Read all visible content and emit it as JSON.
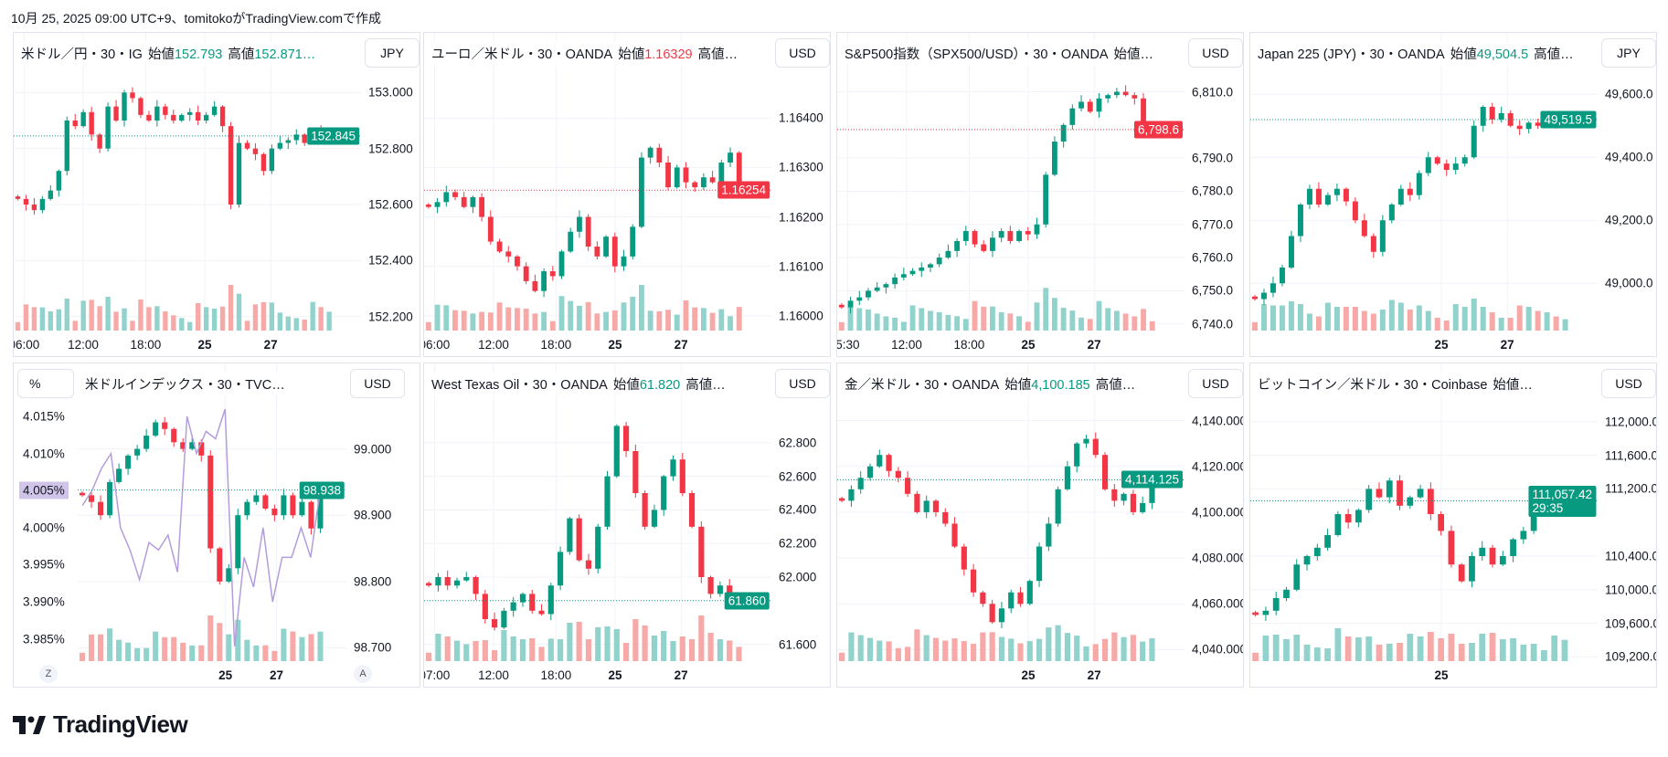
{
  "caption": "10月 25, 2025 09:00 UTC+9、tomitokoがTradingView.comで作成",
  "brand": "TradingView",
  "colors": {
    "up": "#089981",
    "down": "#f23645",
    "vol_up": "#92d2cc",
    "vol_down": "#f7a9a7",
    "overlay": "#b39ddb"
  },
  "chart_data": [
    {
      "type": "candlestick",
      "title": "米ドル／円・30・IG",
      "open_label": "始値",
      "open": "152.793",
      "open_dir": "up",
      "high_label": "高値",
      "high": "152.871…",
      "currency": "JPY",
      "ylim": [
        152.15,
        153.05
      ],
      "yticks": [
        "153.000",
        "152.800",
        "152.600",
        "152.400",
        "152.200"
      ],
      "ytick_values": [
        153.0,
        152.8,
        152.6,
        152.4,
        152.2
      ],
      "xticks": [
        "06:00",
        "12:00",
        "18:00",
        "25",
        "27"
      ],
      "last_price": "152.845",
      "last_value": 152.845,
      "last_dir": "up",
      "closes": [
        152.62,
        152.6,
        152.58,
        152.62,
        152.65,
        152.72,
        152.9,
        152.88,
        152.93,
        152.85,
        152.8,
        152.95,
        152.9,
        153.0,
        152.98,
        152.92,
        152.9,
        152.95,
        152.92,
        152.9,
        152.92,
        152.93,
        152.9,
        152.92,
        152.95,
        152.88,
        152.6,
        152.82,
        152.8,
        152.78,
        152.72,
        152.8,
        152.82,
        152.83,
        152.85,
        152.82,
        152.86,
        152.84,
        152.845
      ]
    },
    {
      "type": "candlestick",
      "title": "ユーロ／米ドル・30・OANDA",
      "open_label": "始値",
      "open": "1.16329",
      "open_dir": "down",
      "high_label": "高値…",
      "high": "",
      "currency": "USD",
      "ylim": [
        1.1597,
        1.1648
      ],
      "yticks": [
        "1.16400",
        "1.16300",
        "1.16200",
        "1.16100",
        "1.16000"
      ],
      "ytick_values": [
        1.164,
        1.163,
        1.162,
        1.161,
        1.16
      ],
      "xticks": [
        "06:00",
        "12:00",
        "18:00",
        "25",
        "27"
      ],
      "last_price": "1.16254",
      "last_value": 1.16254,
      "last_dir": "down",
      "closes": [
        1.1622,
        1.1623,
        1.1625,
        1.1624,
        1.1622,
        1.1624,
        1.162,
        1.1615,
        1.1613,
        1.1612,
        1.161,
        1.1607,
        1.1605,
        1.1609,
        1.1608,
        1.1613,
        1.1617,
        1.162,
        1.1614,
        1.1612,
        1.1616,
        1.161,
        1.1612,
        1.1618,
        1.1632,
        1.1634,
        1.1631,
        1.1626,
        1.163,
        1.1627,
        1.1626,
        1.1628,
        1.1627,
        1.1631,
        1.1633,
        1.16254
      ]
    },
    {
      "type": "candlestick",
      "title": "S&P500指数（SPX500/USD）・30・OANDA",
      "open_label": "始値…",
      "open": "",
      "open_dir": "up",
      "high_label": "",
      "high": "",
      "currency": "USD",
      "ylim": [
        6738,
        6814
      ],
      "yticks": [
        "6,810.0",
        "6,790.0",
        "6,780.0",
        "6,770.0",
        "6,760.0",
        "6,750.0",
        "6,740.0"
      ],
      "ytick_values": [
        6810,
        6790,
        6780,
        6770,
        6760,
        6750,
        6740
      ],
      "xticks": [
        "5:30",
        "12:00",
        "18:00",
        "25",
        "27"
      ],
      "last_price": "6,798.6",
      "last_value": 6798.6,
      "last_dir": "down",
      "closes": [
        6745,
        6747,
        6748,
        6750,
        6751,
        6752,
        6754,
        6755,
        6756,
        6757,
        6758,
        6760,
        6762,
        6765,
        6768,
        6764,
        6762,
        6766,
        6768,
        6765,
        6768,
        6767,
        6770,
        6785,
        6795,
        6800,
        6805,
        6807,
        6804,
        6808,
        6809,
        6810,
        6809,
        6808,
        6800,
        6798.6
      ]
    },
    {
      "type": "candlestick",
      "title": "Japan 225 (JPY)・30・OANDA",
      "open_label": "始値",
      "open": "49,504.5",
      "open_dir": "up",
      "high_label": "高値…",
      "high": "",
      "currency": "JPY",
      "ylim": [
        48850,
        49650
      ],
      "yticks": [
        "49,600.0",
        "49,400.0",
        "49,200.0",
        "49,000.0"
      ],
      "ytick_values": [
        49600,
        49400,
        49200,
        49000
      ],
      "xticks": [
        "25",
        "27"
      ],
      "last_price": "49,519.5",
      "last_value": 49519.5,
      "last_dir": "up",
      "closes": [
        48950,
        48970,
        49000,
        49050,
        49150,
        49250,
        49300,
        49250,
        49280,
        49300,
        49260,
        49200,
        49150,
        49100,
        49200,
        49250,
        49300,
        49280,
        49350,
        49400,
        49380,
        49360,
        49380,
        49400,
        49500,
        49560,
        49520,
        49540,
        49500,
        49490,
        49510,
        49500,
        49520,
        49510,
        49519.5
      ]
    },
    {
      "type": "candlestick",
      "title": "米ドルインデックス・30・TVC…",
      "open_label": "",
      "open": "",
      "open_dir": "up",
      "high_label": "",
      "high": "",
      "currency": "USD",
      "left_axis_unit": "%",
      "ylim": [
        98.68,
        99.06
      ],
      "yticks": [
        "99.000",
        "98.900",
        "98.800",
        "98.700"
      ],
      "ytick_values": [
        99.0,
        98.9,
        98.8,
        98.7
      ],
      "xticks": [
        "25",
        "27"
      ],
      "last_price": "98.938",
      "last_value": 98.938,
      "last_dir": "up",
      "closes": [
        98.93,
        98.92,
        98.9,
        98.95,
        98.97,
        98.99,
        99.0,
        99.02,
        99.04,
        99.03,
        99.01,
        99.0,
        99.01,
        98.99,
        98.85,
        98.8,
        98.82,
        98.9,
        98.92,
        98.93,
        98.91,
        98.9,
        98.93,
        98.9,
        98.92,
        98.88,
        98.938
      ],
      "overlay": {
        "ylim": [
          3.982,
          4.016
        ],
        "yticks": [
          "4.015%",
          "4.010%",
          "4.005%",
          "4.000%",
          "3.995%",
          "3.990%",
          "3.985%"
        ],
        "ytick_values": [
          4.015,
          4.01,
          4.005,
          4.0,
          3.995,
          3.99,
          3.985
        ],
        "highlight": "4.005%",
        "values": [
          4.003,
          4.005,
          4.008,
          4.01,
          4.0,
          3.997,
          3.993,
          3.998,
          3.997,
          3.999,
          3.994,
          4.015,
          4.01,
          4.013,
          4.012,
          4.016,
          3.984,
          3.996,
          3.992,
          4.0,
          3.99,
          3.996,
          3.996,
          4.0,
          3.996,
          4.005
        ]
      },
      "scale_buttons": [
        "Z",
        "A"
      ]
    },
    {
      "type": "candlestick",
      "title": "West Texas Oil・30・OANDA",
      "open_label": "始値",
      "open": "61.820",
      "open_dir": "up",
      "high_label": "高値…",
      "high": "",
      "currency": "USD",
      "ylim": [
        61.5,
        63.0
      ],
      "yticks": [
        "62.800",
        "62.600",
        "62.400",
        "62.200",
        "62.000",
        "61.600"
      ],
      "ytick_values": [
        62.8,
        62.6,
        62.4,
        62.2,
        62.0,
        61.6
      ],
      "xticks": [
        "07:00",
        "12:00",
        "18:00",
        "25",
        "27"
      ],
      "last_price": "61.860",
      "last_value": 61.86,
      "last_dir": "up",
      "closes": [
        61.95,
        62.0,
        61.95,
        61.98,
        62.0,
        61.9,
        61.75,
        61.7,
        61.8,
        61.85,
        61.9,
        61.8,
        61.78,
        61.95,
        62.15,
        62.35,
        62.1,
        62.05,
        62.3,
        62.6,
        62.9,
        62.75,
        62.5,
        62.3,
        62.4,
        62.6,
        62.7,
        62.5,
        62.3,
        62.0,
        61.9,
        61.95,
        61.88,
        61.86
      ]
    },
    {
      "type": "candlestick",
      "title": "金／米ドル・30・OANDA",
      "open_label": "始値",
      "open": "4,100.185",
      "open_dir": "up",
      "high_label": "高値…",
      "high": "",
      "currency": "USD",
      "ylim": [
        4035,
        4145
      ],
      "yticks": [
        "4,140.000",
        "4,120.000",
        "4,100.000",
        "4,080.000",
        "4,060.000",
        "4,040.000"
      ],
      "ytick_values": [
        4140,
        4120,
        4100,
        4080,
        4060,
        4040
      ],
      "xticks": [
        "25",
        "27"
      ],
      "last_price": "4,114.125",
      "last_value": 4114.125,
      "last_dir": "up",
      "closes": [
        4105,
        4110,
        4115,
        4120,
        4125,
        4118,
        4115,
        4108,
        4100,
        4105,
        4100,
        4095,
        4085,
        4075,
        4065,
        4060,
        4052,
        4058,
        4065,
        4060,
        4070,
        4085,
        4095,
        4110,
        4120,
        4130,
        4132,
        4125,
        4110,
        4105,
        4108,
        4100,
        4104,
        4114.125
      ]
    },
    {
      "type": "candlestick",
      "title": "ビットコイン／米ドル・30・Coinbase",
      "open_label": "始値…",
      "open": "",
      "open_dir": "up",
      "high_label": "",
      "high": "",
      "currency": "USD",
      "ylim": [
        109150,
        112150
      ],
      "yticks": [
        "112,000.00",
        "111,600.00",
        "111,200.00",
        "110,400.00",
        "110,000.00",
        "109,600.00",
        "109,200.00"
      ],
      "ytick_values": [
        112000,
        111600,
        111200,
        110400,
        110000,
        109600,
        109200
      ],
      "xticks": [
        "25"
      ],
      "last_price": "111,057.42",
      "last_countdown": "29:35",
      "last_value": 111057.42,
      "last_dir": "up",
      "closes": [
        109700,
        109750,
        109900,
        110000,
        110300,
        110400,
        110500,
        110650,
        110900,
        110800,
        110950,
        111200,
        111100,
        111300,
        111000,
        111100,
        111200,
        110900,
        110700,
        110300,
        110100,
        110400,
        110500,
        110300,
        110400,
        110600,
        110700,
        110900,
        111000,
        111050,
        111057.42
      ]
    }
  ]
}
